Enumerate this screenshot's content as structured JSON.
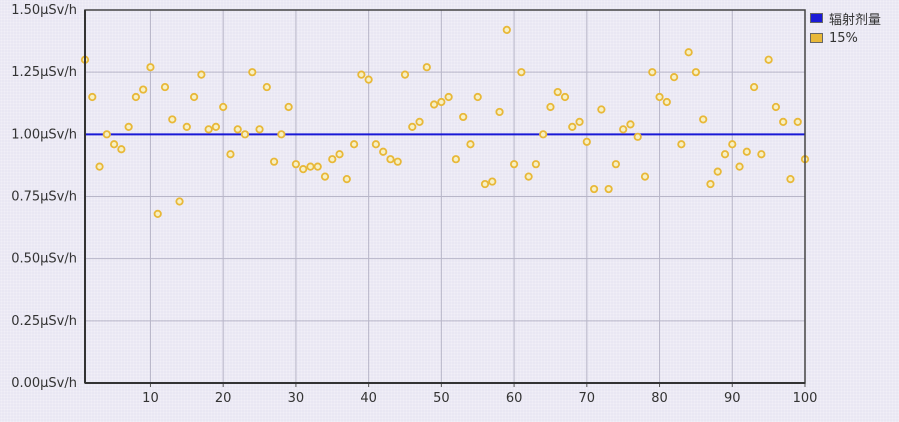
{
  "chart_data": {
    "type": "scatter",
    "ylim": [
      0,
      1.5
    ],
    "xlim": [
      1,
      100
    ],
    "grid": true,
    "legend_position": "top-right",
    "y_ticks": [
      0,
      0.25,
      0.5,
      0.75,
      1.0,
      1.25,
      1.5
    ],
    "y_tick_labels": [
      "0.00μSv/h",
      "0.25μSv/h",
      "0.50μSv/h",
      "0.75μSv/h",
      "1.00μSv/h",
      "1.25μSv/h",
      "1.50μSv/h"
    ],
    "x_ticks": [
      10,
      20,
      30,
      40,
      50,
      60,
      70,
      80,
      90,
      100
    ],
    "x_tick_labels": [
      "10",
      "20",
      "30",
      "40",
      "50",
      "60",
      "70",
      "80",
      "90",
      "100"
    ],
    "reference_line": {
      "name": "辐射剂量",
      "value": 1.0,
      "color": "#1a1ad6"
    },
    "series": [
      {
        "name": "15%",
        "color": "#e8b838",
        "x": [
          1,
          2,
          3,
          4,
          5,
          6,
          7,
          8,
          9,
          10,
          11,
          12,
          13,
          14,
          15,
          16,
          17,
          18,
          19,
          20,
          21,
          22,
          23,
          24,
          25,
          26,
          27,
          28,
          29,
          30,
          31,
          32,
          33,
          34,
          35,
          36,
          37,
          38,
          39,
          40,
          41,
          42,
          43,
          44,
          45,
          46,
          47,
          48,
          49,
          50,
          51,
          52,
          53,
          54,
          55,
          56,
          57,
          58,
          59,
          60,
          61,
          62,
          63,
          64,
          65,
          66,
          67,
          68,
          69,
          70,
          71,
          72,
          73,
          74,
          75,
          76,
          77,
          78,
          79,
          80,
          81,
          82,
          83,
          84,
          85,
          86,
          87,
          88,
          89,
          90,
          91,
          92,
          93,
          94,
          95,
          96,
          97,
          98,
          99,
          100
        ],
        "y": [
          1.3,
          1.15,
          0.87,
          1.0,
          0.96,
          0.94,
          1.03,
          1.15,
          1.18,
          1.27,
          0.68,
          1.19,
          1.06,
          0.73,
          1.03,
          1.15,
          1.24,
          1.02,
          1.03,
          1.11,
          0.92,
          1.02,
          1.0,
          1.25,
          1.02,
          1.19,
          0.89,
          1.0,
          1.11,
          0.88,
          0.86,
          0.87,
          0.87,
          0.83,
          0.9,
          0.92,
          0.82,
          0.96,
          1.24,
          1.22,
          0.96,
          0.93,
          0.9,
          0.89,
          1.24,
          1.03,
          1.05,
          1.27,
          1.12,
          1.13,
          1.15,
          0.9,
          1.07,
          0.96,
          1.15,
          0.8,
          0.81,
          1.09,
          1.42,
          0.88,
          1.25,
          0.83,
          0.88,
          1.0,
          1.11,
          1.17,
          1.15,
          1.03,
          1.05,
          0.97,
          0.78,
          1.1,
          0.78,
          0.88,
          1.02,
          1.04,
          0.99,
          0.83,
          1.25,
          1.15,
          1.13,
          1.23,
          0.96,
          1.33,
          1.25,
          1.06,
          0.8,
          0.85,
          0.92,
          0.96,
          0.87,
          0.93,
          1.19,
          0.92,
          1.3,
          1.11,
          1.05,
          0.82,
          1.05,
          0.9
        ]
      }
    ]
  }
}
